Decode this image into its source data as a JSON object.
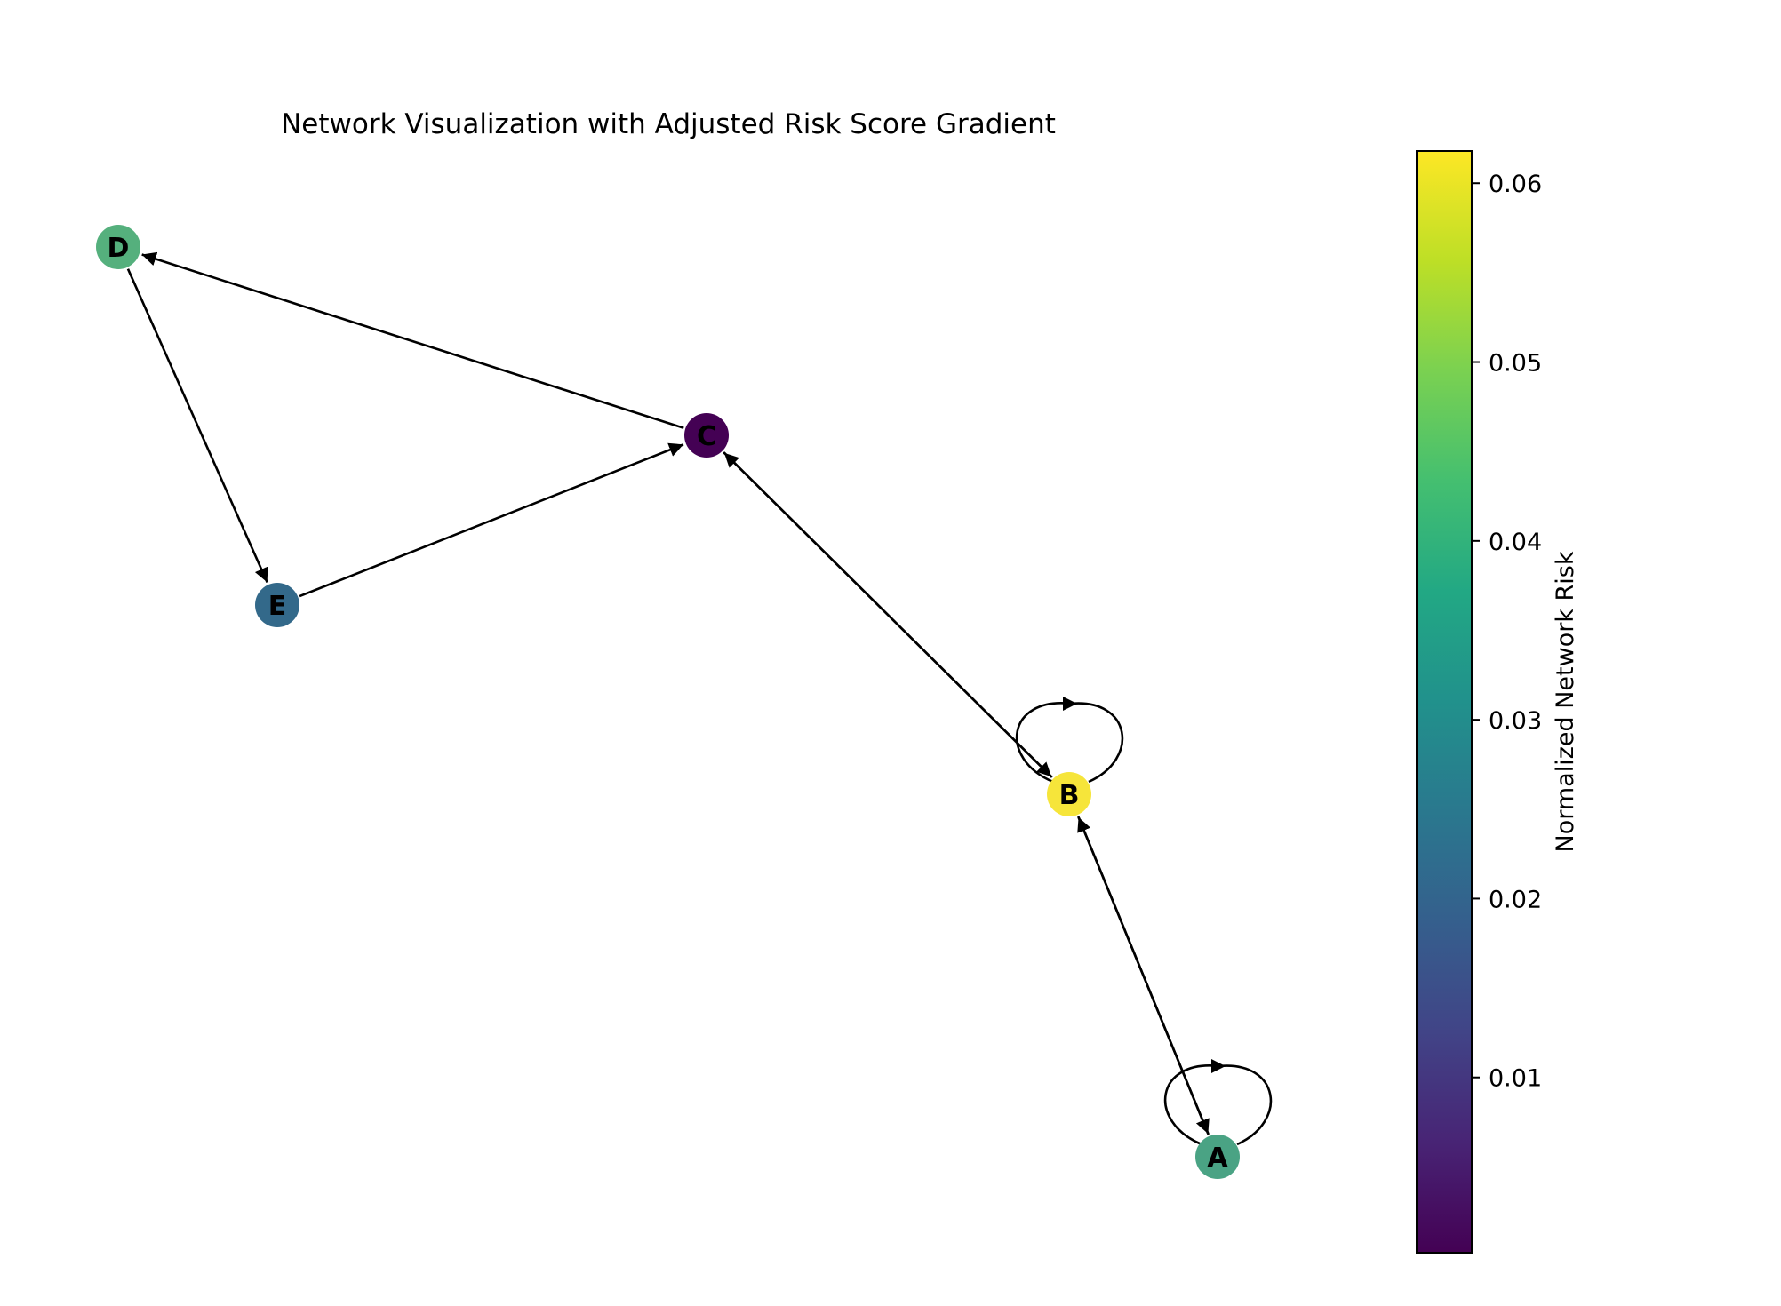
{
  "title": "Network Visualization with Adjusted Risk Score Gradient",
  "colorbar": {
    "label": "Normalized Network Risk",
    "colormap": "viridis",
    "min": 0.0002,
    "max": 0.0618,
    "ticks": [
      "0.01",
      "0.02",
      "0.03",
      "0.04",
      "0.05",
      "0.06"
    ]
  },
  "nodes": [
    {
      "id": "A",
      "label": "A",
      "risk": 0.036,
      "color": "#4aa384"
    },
    {
      "id": "B",
      "label": "B",
      "risk": 0.0618,
      "color": "#f6e53a"
    },
    {
      "id": "C",
      "label": "C",
      "risk": 0.0002,
      "color": "#440154"
    },
    {
      "id": "D",
      "label": "D",
      "risk": 0.04,
      "color": "#55b07d"
    },
    {
      "id": "E",
      "label": "E",
      "risk": 0.024,
      "color": "#33698a"
    }
  ],
  "edges": [
    {
      "source": "A",
      "target": "A"
    },
    {
      "source": "A",
      "target": "B"
    },
    {
      "source": "B",
      "target": "A"
    },
    {
      "source": "B",
      "target": "B"
    },
    {
      "source": "B",
      "target": "C"
    },
    {
      "source": "C",
      "target": "B"
    },
    {
      "source": "C",
      "target": "D"
    },
    {
      "source": "D",
      "target": "E"
    },
    {
      "source": "E",
      "target": "C"
    }
  ]
}
